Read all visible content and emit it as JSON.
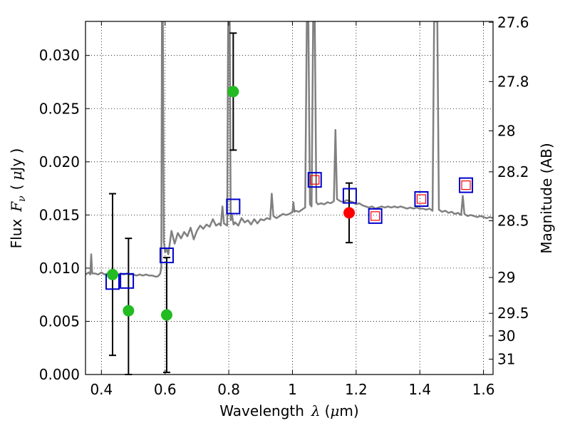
{
  "chart_data": {
    "type": "scatter",
    "xlabel": "Wavelength",
    "xlabel_symbol": "λ",
    "xlabel_unit_open": "(",
    "xlabel_unit_mu": "μ",
    "xlabel_unit_rest": "m)",
    "ylabel": "Flux",
    "ylabel_symbol": "F",
    "ylabel_sub": "ν",
    "ylabel_unit_open": "(",
    "ylabel_unit_mu": "μ",
    "ylabel_unit_rest": "Jy )",
    "y2label": "Magnitude (AB)",
    "xlim": [
      0.35,
      1.63
    ],
    "ylim": [
      0.0,
      0.0332
    ],
    "xticks": [
      0.4,
      0.6,
      0.8,
      1.0,
      1.2,
      1.4,
      1.6
    ],
    "xtick_labels": [
      "0.4",
      "0.6",
      "0.8",
      "1",
      "1.2",
      "1.4",
      "1.6"
    ],
    "yticks": [
      0.0,
      0.005,
      0.01,
      0.015,
      0.02,
      0.025,
      0.03
    ],
    "ytick_labels": [
      "0.000",
      "0.005",
      "0.010",
      "0.015",
      "0.020",
      "0.025",
      "0.030"
    ],
    "mag_ticks": [
      {
        "mag": 27.6,
        "label": "27.6"
      },
      {
        "mag": 27.8,
        "label": "27.8"
      },
      {
        "mag": 28.0,
        "label": "28"
      },
      {
        "mag": 28.2,
        "label": "28.2"
      },
      {
        "mag": 28.5,
        "label": "28.5"
      },
      {
        "mag": 29.0,
        "label": "29"
      },
      {
        "mag": 29.5,
        "label": "29.5"
      },
      {
        "mag": 30.0,
        "label": "30"
      },
      {
        "mag": 31.0,
        "label": "31"
      }
    ],
    "grid": true,
    "colors": {
      "spectrum": "#808080",
      "green_points": "#22bb22",
      "red_point": "#ff0000",
      "blue_squares": "#0000cc",
      "red_squares": "#ff0000",
      "errorbars": "#000000"
    },
    "series": [
      {
        "kind": "spectrum",
        "points": [
          [
            0.35,
            0.0094
          ],
          [
            0.36,
            0.0096
          ],
          [
            0.365,
            0.0094
          ],
          [
            0.368,
            0.0113
          ],
          [
            0.371,
            0.0095
          ],
          [
            0.38,
            0.0095
          ],
          [
            0.39,
            0.0094
          ],
          [
            0.4,
            0.0096
          ],
          [
            0.41,
            0.0094
          ],
          [
            0.42,
            0.0095
          ],
          [
            0.43,
            0.0096
          ],
          [
            0.44,
            0.0095
          ],
          [
            0.45,
            0.0094
          ],
          [
            0.46,
            0.0095
          ],
          [
            0.47,
            0.0094
          ],
          [
            0.48,
            0.0095
          ],
          [
            0.49,
            0.0094
          ],
          [
            0.5,
            0.0094
          ],
          [
            0.51,
            0.0093
          ],
          [
            0.52,
            0.0094
          ],
          [
            0.53,
            0.0093
          ],
          [
            0.54,
            0.0094
          ],
          [
            0.55,
            0.0093
          ],
          [
            0.56,
            0.0093
          ],
          [
            0.57,
            0.0092
          ],
          [
            0.575,
            0.0092
          ],
          [
            0.58,
            0.0093
          ],
          [
            0.585,
            0.0095
          ],
          [
            0.588,
            0.0101
          ],
          [
            0.59,
            0.0332
          ],
          [
            0.593,
            0.0332
          ],
          [
            0.596,
            0.0125
          ],
          [
            0.6,
            0.0115
          ],
          [
            0.605,
            0.0118
          ],
          [
            0.61,
            0.0113
          ],
          [
            0.62,
            0.0135
          ],
          [
            0.63,
            0.0123
          ],
          [
            0.64,
            0.0133
          ],
          [
            0.65,
            0.0128
          ],
          [
            0.66,
            0.0134
          ],
          [
            0.67,
            0.013
          ],
          [
            0.68,
            0.0138
          ],
          [
            0.69,
            0.0127
          ],
          [
            0.7,
            0.0135
          ],
          [
            0.71,
            0.014
          ],
          [
            0.72,
            0.0137
          ],
          [
            0.73,
            0.0141
          ],
          [
            0.74,
            0.0139
          ],
          [
            0.75,
            0.0146
          ],
          [
            0.76,
            0.014
          ],
          [
            0.77,
            0.0142
          ],
          [
            0.775,
            0.014
          ],
          [
            0.78,
            0.0158
          ],
          [
            0.785,
            0.0142
          ],
          [
            0.79,
            0.0141
          ],
          [
            0.795,
            0.014
          ],
          [
            0.798,
            0.0332
          ],
          [
            0.803,
            0.0332
          ],
          [
            0.806,
            0.0145
          ],
          [
            0.81,
            0.015
          ],
          [
            0.815,
            0.0141
          ],
          [
            0.82,
            0.0143
          ],
          [
            0.83,
            0.014
          ],
          [
            0.84,
            0.0147
          ],
          [
            0.85,
            0.0143
          ],
          [
            0.86,
            0.0145
          ],
          [
            0.87,
            0.0141
          ],
          [
            0.88,
            0.0146
          ],
          [
            0.89,
            0.0142
          ],
          [
            0.9,
            0.0146
          ],
          [
            0.91,
            0.0145
          ],
          [
            0.92,
            0.0147
          ],
          [
            0.93,
            0.0146
          ],
          [
            0.935,
            0.017
          ],
          [
            0.94,
            0.0149
          ],
          [
            0.95,
            0.0147
          ],
          [
            0.96,
            0.0149
          ],
          [
            0.97,
            0.0151
          ],
          [
            0.98,
            0.015
          ],
          [
            0.99,
            0.0151
          ],
          [
            1.0,
            0.0153
          ],
          [
            1.003,
            0.0162
          ],
          [
            1.006,
            0.0153
          ],
          [
            1.01,
            0.0154
          ],
          [
            1.02,
            0.0153
          ],
          [
            1.03,
            0.0155
          ],
          [
            1.04,
            0.0157
          ],
          [
            1.045,
            0.0332
          ],
          [
            1.05,
            0.0332
          ],
          [
            1.055,
            0.016
          ],
          [
            1.06,
            0.0158
          ],
          [
            1.065,
            0.0332
          ],
          [
            1.07,
            0.0332
          ],
          [
            1.075,
            0.0162
          ],
          [
            1.08,
            0.016
          ],
          [
            1.09,
            0.0161
          ],
          [
            1.1,
            0.016
          ],
          [
            1.11,
            0.0162
          ],
          [
            1.12,
            0.0161
          ],
          [
            1.13,
            0.0163
          ],
          [
            1.135,
            0.023
          ],
          [
            1.14,
            0.0165
          ],
          [
            1.15,
            0.0163
          ],
          [
            1.16,
            0.0162
          ],
          [
            1.17,
            0.0164
          ],
          [
            1.18,
            0.0163
          ],
          [
            1.19,
            0.0162
          ],
          [
            1.2,
            0.016
          ],
          [
            1.21,
            0.0161
          ],
          [
            1.22,
            0.0159
          ],
          [
            1.23,
            0.0158
          ],
          [
            1.24,
            0.0157
          ],
          [
            1.25,
            0.0158
          ],
          [
            1.26,
            0.0156
          ],
          [
            1.27,
            0.0157
          ],
          [
            1.28,
            0.0158
          ],
          [
            1.29,
            0.0157
          ],
          [
            1.3,
            0.0158
          ],
          [
            1.31,
            0.0157
          ],
          [
            1.32,
            0.0158
          ],
          [
            1.33,
            0.0157
          ],
          [
            1.34,
            0.0158
          ],
          [
            1.35,
            0.0157
          ],
          [
            1.36,
            0.0156
          ],
          [
            1.37,
            0.0157
          ],
          [
            1.38,
            0.0156
          ],
          [
            1.39,
            0.0157
          ],
          [
            1.4,
            0.0156
          ],
          [
            1.41,
            0.0156
          ],
          [
            1.42,
            0.0155
          ],
          [
            1.43,
            0.0156
          ],
          [
            1.44,
            0.0154
          ],
          [
            1.445,
            0.0332
          ],
          [
            1.455,
            0.0332
          ],
          [
            1.46,
            0.0155
          ],
          [
            1.47,
            0.0153
          ],
          [
            1.48,
            0.0154
          ],
          [
            1.49,
            0.0152
          ],
          [
            1.5,
            0.0153
          ],
          [
            1.51,
            0.0151
          ],
          [
            1.52,
            0.0152
          ],
          [
            1.53,
            0.015
          ],
          [
            1.535,
            0.0168
          ],
          [
            1.54,
            0.0151
          ],
          [
            1.55,
            0.0149
          ],
          [
            1.56,
            0.015
          ],
          [
            1.57,
            0.0149
          ],
          [
            1.58,
            0.0148
          ],
          [
            1.59,
            0.0149
          ],
          [
            1.6,
            0.0148
          ],
          [
            1.61,
            0.0147
          ],
          [
            1.62,
            0.0148
          ],
          [
            1.63,
            0.0147
          ]
        ]
      },
      {
        "kind": "green_points",
        "points": [
          {
            "x": 0.435,
            "y": 0.0094,
            "err_lo": 0.0076,
            "err_hi": 0.0076
          },
          {
            "x": 0.485,
            "y": 0.006,
            "err_lo": 0.0068,
            "err_hi": 0.0068
          },
          {
            "x": 0.605,
            "y": 0.0056,
            "err_lo": 0.0054,
            "err_hi": 0.0054
          },
          {
            "x": 0.814,
            "y": 0.0266,
            "err_lo": 0.0055,
            "err_hi": 0.0055
          }
        ]
      },
      {
        "kind": "red_point",
        "points": [
          {
            "x": 1.178,
            "y": 0.0152,
            "err_lo": 0.0028,
            "err_hi": 0.0028
          }
        ]
      },
      {
        "kind": "blue_squares",
        "points": [
          {
            "x": 0.435,
            "y": 0.0087
          },
          {
            "x": 0.48,
            "y": 0.0088
          },
          {
            "x": 0.605,
            "y": 0.0112
          },
          {
            "x": 0.814,
            "y": 0.0158
          },
          {
            "x": 1.07,
            "y": 0.0183
          },
          {
            "x": 1.18,
            "y": 0.0168
          },
          {
            "x": 1.26,
            "y": 0.0149
          },
          {
            "x": 1.405,
            "y": 0.0165
          },
          {
            "x": 1.545,
            "y": 0.0178
          }
        ]
      },
      {
        "kind": "red_squares",
        "points": [
          {
            "x": 1.07,
            "y": 0.0183
          },
          {
            "x": 1.26,
            "y": 0.0149
          },
          {
            "x": 1.405,
            "y": 0.0165
          },
          {
            "x": 1.545,
            "y": 0.0178
          }
        ]
      }
    ]
  }
}
